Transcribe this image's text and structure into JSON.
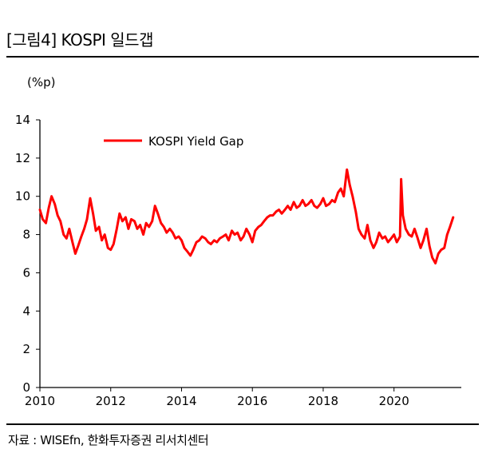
{
  "header": {
    "title": "[그림4]   KOSPI 일드갭"
  },
  "footer": {
    "source": "자료 : WISEfn, 한화투자증권 리서치센터"
  },
  "chart_data": {
    "type": "line",
    "title": "KOSPI 일드갭",
    "ylabel": "(%p)",
    "xlabel": "",
    "xlim": [
      2010,
      2021.9
    ],
    "ylim": [
      0,
      14
    ],
    "y_ticks": [
      0,
      2,
      4,
      6,
      8,
      10,
      12,
      14
    ],
    "x_ticks": [
      2010,
      2012,
      2014,
      2016,
      2018,
      2020
    ],
    "legend_position": "top-left",
    "grid": false,
    "series": [
      {
        "name": "KOSPI Yield Gap",
        "color": "#ff0000",
        "x": [
          2010.0,
          2010.08,
          2010.17,
          2010.25,
          2010.33,
          2010.42,
          2010.5,
          2010.58,
          2010.67,
          2010.75,
          2010.83,
          2010.92,
          2011.0,
          2011.08,
          2011.17,
          2011.25,
          2011.33,
          2011.42,
          2011.5,
          2011.58,
          2011.67,
          2011.75,
          2011.83,
          2011.92,
          2012.0,
          2012.08,
          2012.17,
          2012.25,
          2012.33,
          2012.42,
          2012.5,
          2012.58,
          2012.67,
          2012.75,
          2012.83,
          2012.92,
          2013.0,
          2013.08,
          2013.17,
          2013.25,
          2013.33,
          2013.42,
          2013.5,
          2013.58,
          2013.67,
          2013.75,
          2013.83,
          2013.92,
          2014.0,
          2014.08,
          2014.17,
          2014.25,
          2014.33,
          2014.42,
          2014.5,
          2014.58,
          2014.67,
          2014.75,
          2014.83,
          2014.92,
          2015.0,
          2015.08,
          2015.17,
          2015.25,
          2015.33,
          2015.42,
          2015.5,
          2015.58,
          2015.67,
          2015.75,
          2015.83,
          2015.92,
          2016.0,
          2016.08,
          2016.17,
          2016.25,
          2016.33,
          2016.42,
          2016.5,
          2016.58,
          2016.67,
          2016.75,
          2016.83,
          2016.92,
          2017.0,
          2017.08,
          2017.17,
          2017.25,
          2017.33,
          2017.42,
          2017.5,
          2017.58,
          2017.67,
          2017.75,
          2017.83,
          2017.92,
          2018.0,
          2018.08,
          2018.17,
          2018.25,
          2018.33,
          2018.42,
          2018.5,
          2018.58,
          2018.67,
          2018.75,
          2018.83,
          2018.92,
          2019.0,
          2019.08,
          2019.17,
          2019.25,
          2019.33,
          2019.42,
          2019.5,
          2019.58,
          2019.67,
          2019.75,
          2019.83,
          2019.92,
          2020.0,
          2020.08,
          2020.17,
          2020.2,
          2020.25,
          2020.33,
          2020.42,
          2020.5,
          2020.58,
          2020.67,
          2020.75,
          2020.83,
          2020.92,
          2021.0,
          2021.08,
          2021.17,
          2021.25,
          2021.33,
          2021.42,
          2021.5,
          2021.58,
          2021.67
        ],
        "values": [
          9.3,
          8.8,
          8.6,
          9.4,
          10.0,
          9.6,
          9.0,
          8.7,
          8.0,
          7.8,
          8.3,
          7.6,
          7.0,
          7.4,
          7.9,
          8.3,
          8.8,
          9.9,
          9.1,
          8.2,
          8.4,
          7.7,
          8.0,
          7.3,
          7.2,
          7.5,
          8.3,
          9.1,
          8.7,
          8.9,
          8.3,
          8.8,
          8.7,
          8.3,
          8.5,
          8.0,
          8.6,
          8.4,
          8.7,
          9.5,
          9.1,
          8.6,
          8.4,
          8.1,
          8.3,
          8.1,
          7.8,
          7.9,
          7.7,
          7.3,
          7.1,
          6.9,
          7.2,
          7.6,
          7.7,
          7.9,
          7.8,
          7.6,
          7.5,
          7.7,
          7.6,
          7.8,
          7.9,
          8.0,
          7.7,
          8.2,
          8.0,
          8.1,
          7.7,
          7.9,
          8.3,
          8.0,
          7.6,
          8.2,
          8.4,
          8.5,
          8.7,
          8.9,
          9.0,
          9.0,
          9.2,
          9.3,
          9.1,
          9.3,
          9.5,
          9.3,
          9.7,
          9.4,
          9.5,
          9.8,
          9.5,
          9.6,
          9.8,
          9.5,
          9.4,
          9.6,
          9.9,
          9.5,
          9.6,
          9.8,
          9.7,
          10.2,
          10.4,
          10.0,
          11.4,
          10.6,
          10.0,
          9.2,
          8.3,
          8.0,
          7.8,
          8.5,
          7.7,
          7.3,
          7.6,
          8.1,
          7.8,
          7.9,
          7.6,
          7.8,
          8.0,
          7.6,
          7.9,
          10.9,
          9.0,
          8.3,
          8.0,
          7.9,
          8.3,
          7.8,
          7.3,
          7.7,
          8.3,
          7.4,
          6.8,
          6.5,
          7.0,
          7.2,
          7.3,
          8.0,
          8.4,
          8.9
        ]
      }
    ]
  }
}
